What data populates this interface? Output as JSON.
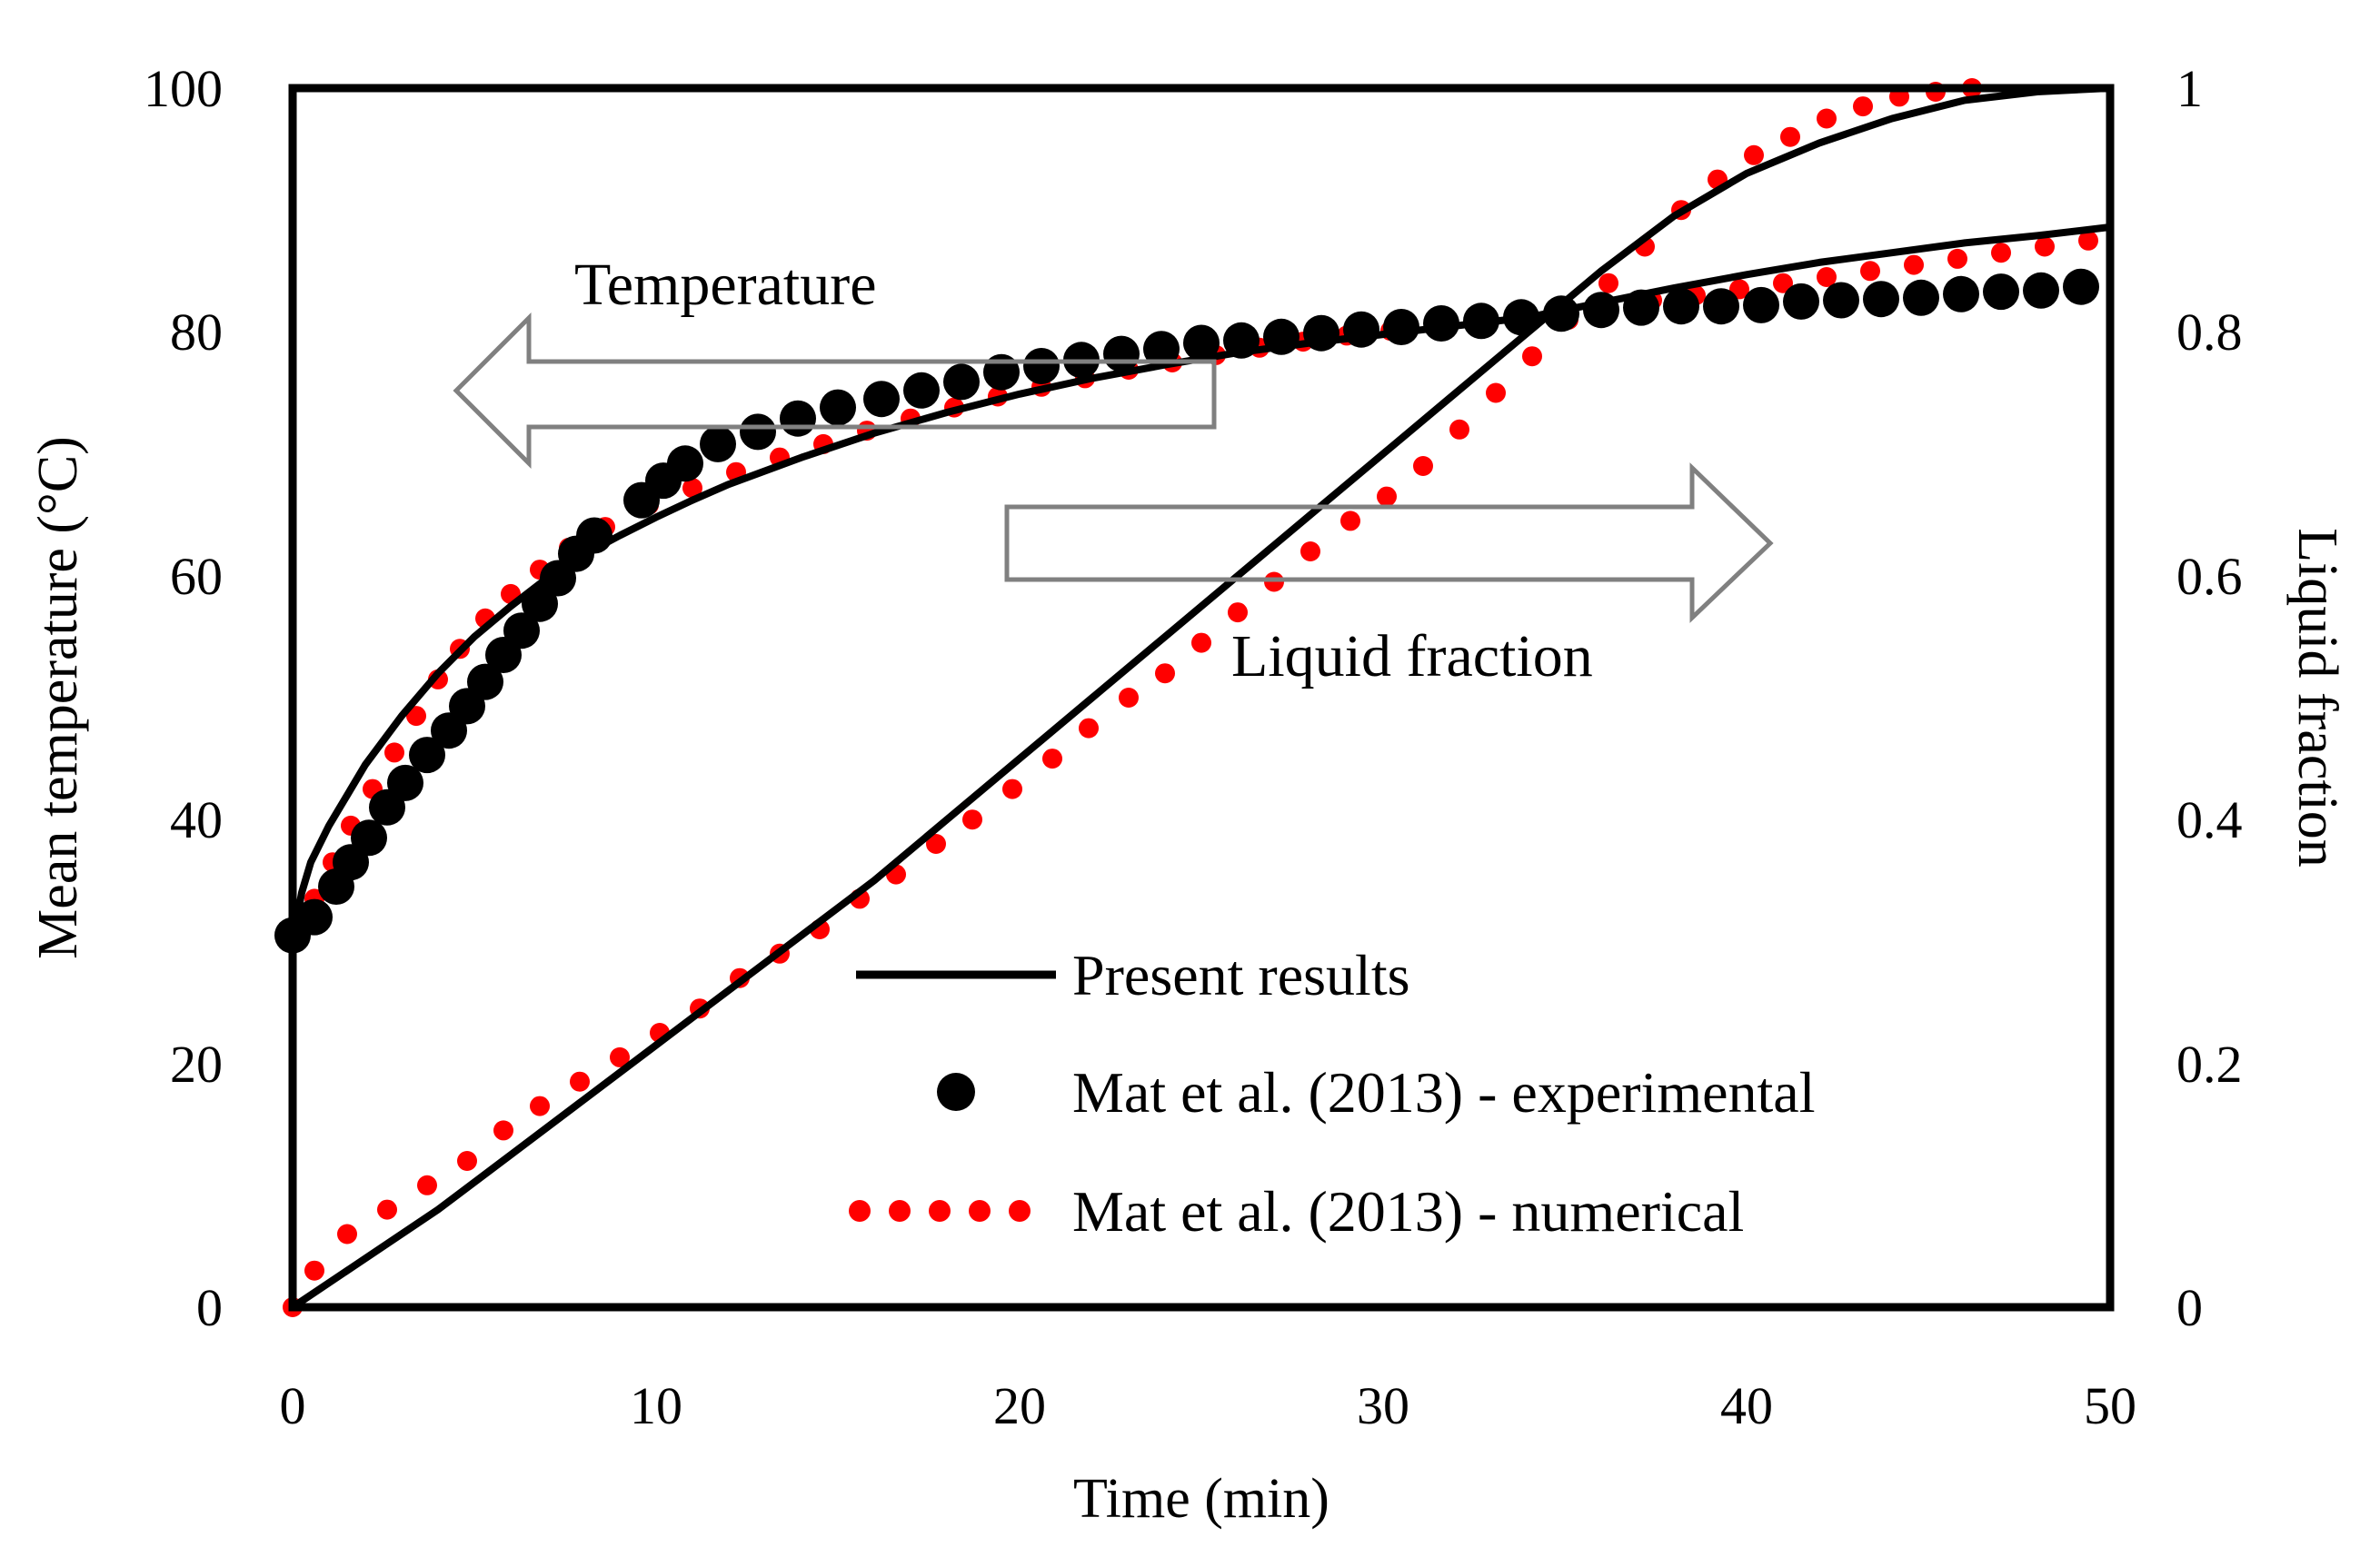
{
  "chart_data": {
    "type": "line",
    "title": "",
    "xlabel": "Time (min)",
    "ylabel_left": "Mean temperature (°C)",
    "ylabel_right": "Liquid fraction",
    "xlim": [
      0,
      50
    ],
    "ylim_left": [
      0,
      100
    ],
    "ylim_right": [
      0,
      1
    ],
    "x_ticks": [
      "0",
      "10",
      "20",
      "30",
      "40",
      "50"
    ],
    "y_left_ticks": [
      "0",
      "20",
      "40",
      "60",
      "80",
      "100"
    ],
    "y_right_ticks": [
      "0",
      "0.2",
      "0.4",
      "0.6",
      "0.8",
      "1"
    ],
    "grid": false,
    "legend_position": "bottom-center",
    "annotations": [
      {
        "text": "Temperature",
        "arrow": "left"
      },
      {
        "text": "Liquid fraction",
        "arrow": "right"
      }
    ],
    "colors": {
      "present": "#000000",
      "experimental": "#000000",
      "numerical": "#ff0000",
      "arrow": "#808080"
    },
    "series": [
      {
        "name": "Present results",
        "quantity": "temperature",
        "axis": "left",
        "style": "solid-line",
        "x": [
          0,
          0.25,
          0.5,
          1,
          1.5,
          2,
          3,
          4,
          5,
          6,
          7,
          8,
          9,
          10,
          11,
          12,
          14,
          16,
          18,
          20,
          22,
          24,
          26,
          28,
          30,
          32,
          34,
          35,
          36,
          37,
          38,
          40,
          42,
          44,
          46,
          48,
          50
        ],
        "y": [
          30,
          34,
          36.5,
          39.5,
          42,
          44.5,
          48.5,
          52,
          55,
          57.5,
          59.8,
          61.7,
          63.3,
          64.8,
          66.2,
          67.5,
          69.7,
          71.7,
          73.4,
          74.9,
          76.2,
          77.3,
          78.3,
          79.1,
          79.8,
          80.5,
          81.2,
          81.8,
          82.4,
          83,
          83.6,
          84.7,
          85.7,
          86.5,
          87.3,
          87.9,
          88.6
        ]
      },
      {
        "name": "Present results",
        "quantity": "liquid fraction",
        "axis": "right",
        "style": "solid-line",
        "x": [
          0,
          2,
          4,
          6,
          8,
          10,
          12,
          14,
          16,
          18,
          20,
          22,
          24,
          26,
          28,
          30,
          32,
          34,
          35,
          36,
          38,
          40,
          42,
          44,
          46,
          48,
          50
        ],
        "y": [
          0,
          0.04,
          0.08,
          0.125,
          0.17,
          0.215,
          0.26,
          0.305,
          0.35,
          0.4,
          0.45,
          0.5,
          0.55,
          0.6,
          0.65,
          0.7,
          0.75,
          0.8,
          0.825,
          0.85,
          0.895,
          0.93,
          0.955,
          0.975,
          0.99,
          0.997,
          1.0
        ]
      },
      {
        "name": "Mat et al. (2013) - experimental",
        "quantity": "temperature",
        "axis": "left",
        "style": "black-dot",
        "x": [
          0,
          0.6,
          1.2,
          1.6,
          2.1,
          2.6,
          3.1,
          3.7,
          4.3,
          4.8,
          5.3,
          5.8,
          6.3,
          6.8,
          7.3,
          7.8,
          8.3,
          9.6,
          10.2,
          10.8,
          11.7,
          12.8,
          13.9,
          15.0,
          16.2,
          17.3,
          18.4,
          19.5,
          20.6,
          21.7,
          22.8,
          23.9,
          25.0,
          26.1,
          27.2,
          28.3,
          29.4,
          30.5,
          31.6,
          32.7,
          33.8,
          34.9,
          36.0,
          37.1,
          38.2,
          39.3,
          40.4,
          41.5,
          42.6,
          43.7,
          44.8,
          45.9,
          47.0,
          48.1,
          49.2
        ],
        "y": [
          30.5,
          32,
          34.5,
          36.5,
          38.5,
          41,
          43,
          45.3,
          47.3,
          49.3,
          51.3,
          53.5,
          55.5,
          57.7,
          59.8,
          61.8,
          63.3,
          66.2,
          67.8,
          69.2,
          70.8,
          71.8,
          72.9,
          73.8,
          74.5,
          75.2,
          75.9,
          76.7,
          77.2,
          77.7,
          78.2,
          78.6,
          79.1,
          79.3,
          79.6,
          79.9,
          80.2,
          80.4,
          80.7,
          80.9,
          81.2,
          81.5,
          81.8,
          82.0,
          82.1,
          82.1,
          82.2,
          82.5,
          82.6,
          82.7,
          82.8,
          83.1,
          83.3,
          83.4,
          83.7
        ]
      },
      {
        "name": "Mat et al. (2013) - numerical",
        "quantity": "temperature",
        "axis": "left",
        "style": "red-dot",
        "x": [
          0.6,
          1.1,
          1.6,
          2.2,
          2.8,
          3.4,
          4.0,
          4.6,
          5.3,
          6.0,
          6.8,
          7.6,
          8.6,
          9.8,
          11.0,
          12.2,
          13.4,
          14.6,
          15.8,
          17.0,
          18.2,
          19.4,
          20.6,
          21.8,
          23.0,
          24.2,
          25.4,
          26.6,
          27.8,
          29.0,
          30.2,
          31.4,
          32.6,
          33.8,
          35.0,
          36.2,
          37.4,
          38.6,
          39.8,
          41.0,
          42.2,
          43.4,
          44.6,
          45.8,
          47.0,
          48.2,
          49.4
        ],
        "y": [
          33.5,
          36.5,
          39.5,
          42.5,
          45.5,
          48.5,
          51.5,
          54,
          56.5,
          58.5,
          60.5,
          62.3,
          64,
          65.8,
          67.2,
          68.5,
          69.7,
          70.8,
          71.9,
          72.9,
          73.8,
          74.7,
          75.5,
          76.2,
          76.9,
          77.5,
          78.1,
          78.7,
          79.2,
          79.7,
          80.1,
          80.5,
          80.9,
          81.3,
          81.7,
          82.1,
          82.6,
          83.0,
          83.5,
          84.0,
          84.5,
          85.0,
          85.5,
          86.0,
          86.5,
          87.0,
          87.5
        ]
      },
      {
        "name": "Mat et al. (2013) - numerical",
        "quantity": "liquid fraction",
        "axis": "right",
        "style": "red-dot",
        "x": [
          0,
          0.6,
          1.5,
          2.6,
          3.7,
          4.8,
          5.8,
          6.8,
          7.9,
          9.0,
          10.1,
          11.2,
          12.3,
          13.4,
          14.5,
          15.6,
          16.6,
          17.7,
          18.7,
          19.8,
          20.9,
          21.9,
          23.0,
          24.0,
          25.0,
          26.0,
          27.0,
          28.0,
          29.1,
          30.1,
          31.1,
          32.1,
          33.1,
          34.1,
          35.1,
          36.2,
          37.2,
          38.2,
          39.2,
          40.2,
          41.2,
          42.2,
          43.2,
          44.2,
          45.2,
          46.2
        ],
        "y": [
          0,
          0.03,
          0.06,
          0.08,
          0.1,
          0.12,
          0.145,
          0.165,
          0.185,
          0.205,
          0.225,
          0.245,
          0.27,
          0.29,
          0.31,
          0.335,
          0.355,
          0.38,
          0.4,
          0.425,
          0.45,
          0.475,
          0.5,
          0.52,
          0.545,
          0.57,
          0.595,
          0.62,
          0.645,
          0.665,
          0.69,
          0.72,
          0.75,
          0.78,
          0.81,
          0.84,
          0.87,
          0.9,
          0.925,
          0.945,
          0.96,
          0.975,
          0.985,
          0.993,
          0.997,
          1.0
        ]
      }
    ],
    "legend": [
      {
        "label": "Present results",
        "style": "solid-line"
      },
      {
        "label": "Mat et al. (2013) - experimental",
        "style": "black-dot"
      },
      {
        "label": "Mat et al. (2013) - numerical",
        "style": "red-dot"
      }
    ]
  }
}
